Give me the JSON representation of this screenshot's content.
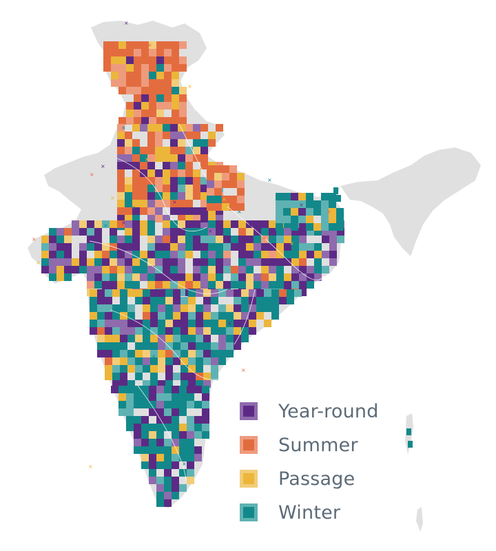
{
  "legend": {
    "items": [
      {
        "label": "Year-round",
        "key": "year_round",
        "fill": "#5c2a84",
        "border": "#8f6bad"
      },
      {
        "label": "Summer",
        "key": "summer",
        "fill": "#e36c3f",
        "border": "#ee9b7d"
      },
      {
        "label": "Passage",
        "key": "passage",
        "fill": "#ecb63a",
        "border": "#f2cd78"
      },
      {
        "label": "Winter",
        "key": "winter",
        "fill": "#13888a",
        "border": "#5fb2b3"
      }
    ]
  },
  "colors": {
    "landmass": "#e0e0e0",
    "state_boundary": "#ffffff",
    "unsampled_cell": "#f4f4f4",
    "cross_marker": "multi"
  }
}
